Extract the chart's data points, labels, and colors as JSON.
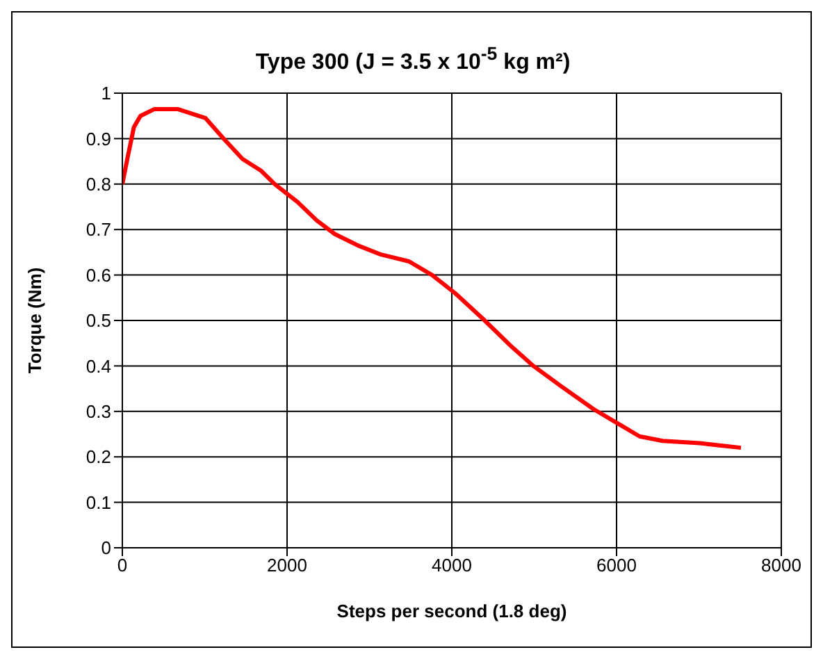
{
  "chart_data": {
    "type": "line",
    "title": "Type 300 (J = 3.5 x 10$^{-5}$ kg m²)",
    "xlabel": "Steps per second (1.8 deg)",
    "ylabel": "Torque (Nm)",
    "x": [
      0,
      60,
      140,
      220,
      390,
      670,
      1010,
      1230,
      1460,
      1680,
      1850,
      2130,
      2360,
      2580,
      2860,
      3140,
      3480,
      3760,
      4040,
      4370,
      4710,
      4990,
      5330,
      5720,
      6000,
      6280,
      6560,
      7010,
      7510
    ],
    "series": [
      {
        "color": "#ff0000",
        "values": [
          0.8,
          0.855,
          0.925,
          0.95,
          0.965,
          0.965,
          0.945,
          0.9,
          0.855,
          0.83,
          0.8,
          0.76,
          0.72,
          0.69,
          0.665,
          0.645,
          0.63,
          0.6,
          0.56,
          0.505,
          0.445,
          0.4,
          0.355,
          0.305,
          0.275,
          0.245,
          0.235,
          0.23,
          0.22
        ]
      }
    ],
    "xlim": [
      0,
      8000
    ],
    "xticks": [
      0,
      2000,
      4000,
      6000,
      8000
    ],
    "ylim": [
      0,
      1
    ],
    "yticks": [
      0,
      0.1,
      0.2,
      0.3,
      0.4,
      0.5,
      0.6,
      0.7,
      0.8,
      0.9,
      1
    ],
    "grid": true,
    "marker": "none",
    "line_style": "solid"
  }
}
